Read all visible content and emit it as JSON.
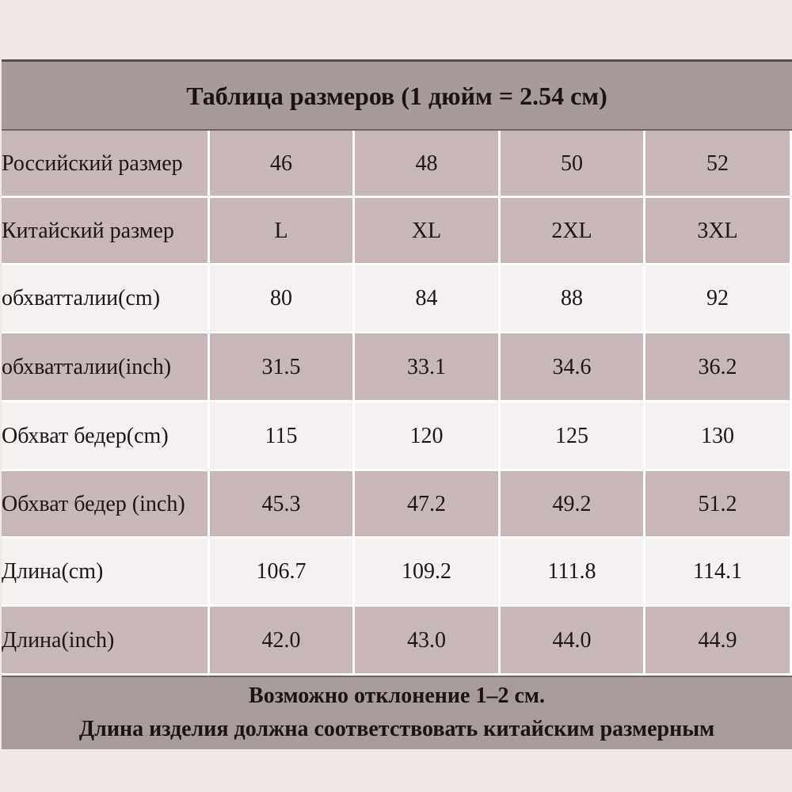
{
  "header": {
    "title": "Таблица размеров (1 дюйм = 2.54 см)"
  },
  "table": {
    "rows": [
      [
        "Российский размер",
        "46",
        "48",
        "50",
        "52"
      ],
      [
        "Китайский размер",
        "L",
        "XL",
        "2XL",
        "3XL"
      ],
      [
        "обхватталии(cm)",
        "80",
        "84",
        "88",
        "92"
      ],
      [
        "обхватталии(inch)",
        "31.5",
        "33.1",
        "34.6",
        "36.2"
      ],
      [
        "Обхват бедер(cm)",
        "115",
        "120",
        "125",
        "130"
      ],
      [
        "Обхват бедер (inch)",
        "45.3",
        "47.2",
        "49.2",
        "51.2"
      ],
      [
        "Длина(cm)",
        "106.7",
        "109.2",
        "111.8",
        "114.1"
      ],
      [
        "Длина(inch)",
        "42.0",
        "43.0",
        "44.0",
        "44.9"
      ]
    ]
  },
  "footer": {
    "lines": [
      "Возможно отклонение 1–2 см.",
      "Длина изделия должна соответствовать китайским размерным"
    ]
  }
}
